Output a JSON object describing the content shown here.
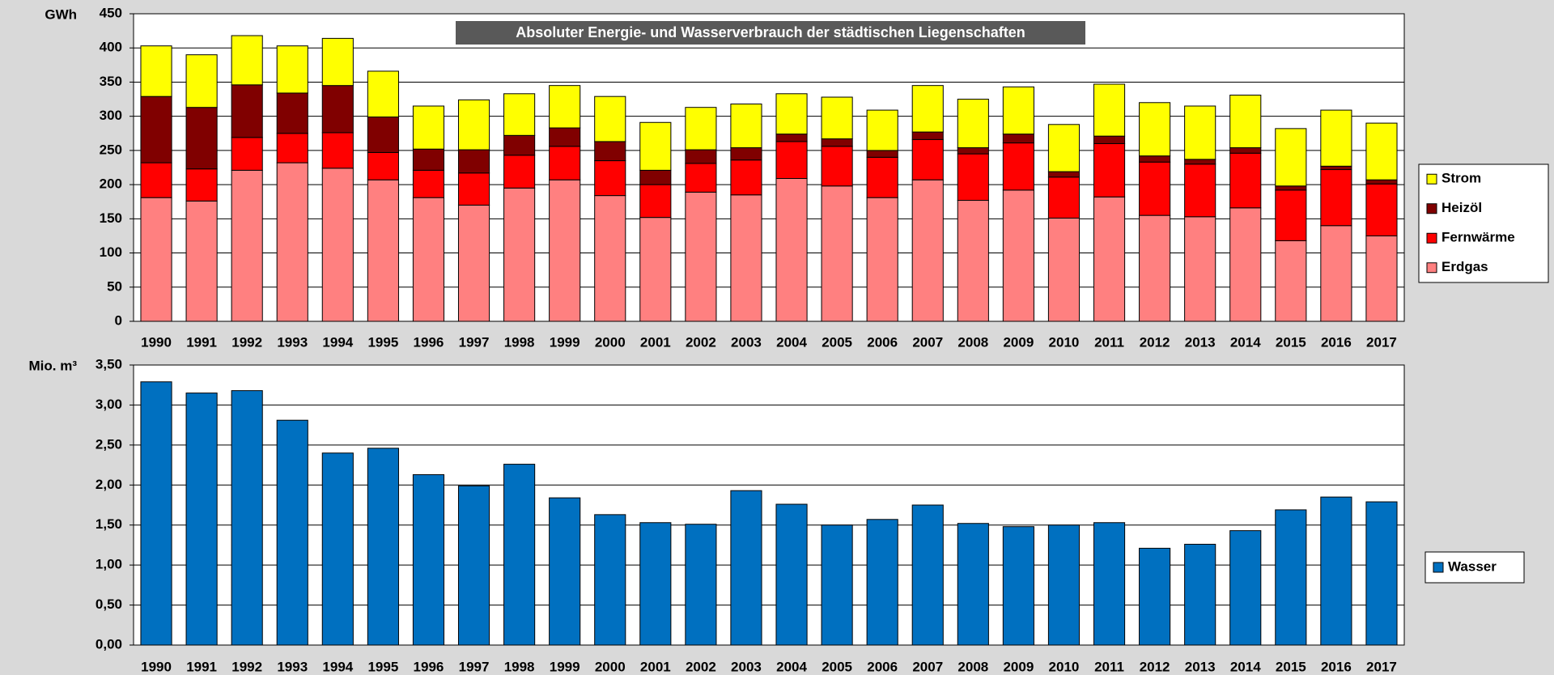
{
  "chart_data": [
    {
      "type": "bar",
      "stacked": true,
      "title": "Absoluter Energie- und Wasserverbrauch der städtischen Liegenschaften",
      "y_label": "GWh",
      "categories": [
        "1990",
        "1991",
        "1992",
        "1993",
        "1994",
        "1995",
        "1996",
        "1997",
        "1998",
        "1999",
        "2000",
        "2001",
        "2002",
        "2003",
        "2004",
        "2005",
        "2006",
        "2007",
        "2008",
        "2009",
        "2010",
        "2011",
        "2012",
        "2013",
        "2014",
        "2015",
        "2016",
        "2017"
      ],
      "series": [
        {
          "name": "Erdgas",
          "color": "#ff8080",
          "values": [
            181,
            176,
            221,
            232,
            224,
            207,
            181,
            170,
            195,
            207,
            184,
            152,
            189,
            185,
            209,
            198,
            181,
            207,
            177,
            192,
            151,
            182,
            155,
            153,
            166,
            118,
            140,
            125
          ]
        },
        {
          "name": "Fernwärme",
          "color": "#ff0000",
          "values": [
            51,
            47,
            48,
            43,
            52,
            40,
            40,
            47,
            48,
            49,
            51,
            48,
            42,
            51,
            54,
            58,
            59,
            59,
            68,
            69,
            60,
            78,
            78,
            77,
            80,
            74,
            82,
            76
          ]
        },
        {
          "name": "Heizöl",
          "color": "#800000",
          "values": [
            97,
            90,
            77,
            59,
            69,
            52,
            31,
            34,
            29,
            27,
            28,
            21,
            20,
            18,
            11,
            11,
            10,
            11,
            9,
            13,
            8,
            11,
            9,
            7,
            8,
            6,
            5,
            6
          ]
        },
        {
          "name": "Strom",
          "color": "#ffff00",
          "values": [
            74,
            77,
            72,
            69,
            69,
            67,
            63,
            73,
            61,
            62,
            66,
            70,
            62,
            64,
            59,
            61,
            59,
            68,
            71,
            69,
            69,
            76,
            78,
            78,
            77,
            84,
            82,
            83
          ]
        }
      ],
      "ylim": [
        0,
        450
      ],
      "yticks": [
        0,
        50,
        100,
        150,
        200,
        250,
        300,
        350,
        400,
        450
      ],
      "grid": true,
      "legend": "right"
    },
    {
      "type": "bar",
      "y_label": "Mio. m³",
      "categories": [
        "1990",
        "1991",
        "1992",
        "1993",
        "1994",
        "1995",
        "1996",
        "1997",
        "1998",
        "1999",
        "2000",
        "2001",
        "2002",
        "2003",
        "2004",
        "2005",
        "2006",
        "2007",
        "2008",
        "2009",
        "2010",
        "2011",
        "2012",
        "2013",
        "2014",
        "2015",
        "2016",
        "2017"
      ],
      "series": [
        {
          "name": "Wasser",
          "color": "#0070c0",
          "values": [
            3.29,
            3.15,
            3.18,
            2.81,
            2.4,
            2.46,
            2.13,
            1.99,
            2.26,
            1.84,
            1.63,
            1.53,
            1.51,
            1.93,
            1.76,
            1.5,
            1.57,
            1.75,
            1.52,
            1.48,
            1.5,
            1.53,
            1.21,
            1.26,
            1.43,
            1.69,
            1.85,
            1.79
          ]
        }
      ],
      "ylim": [
        0,
        3.5
      ],
      "yticks": [
        {
          "value": 0,
          "label": "0,00"
        },
        {
          "value": 0.5,
          "label": "0,50"
        },
        {
          "value": 1,
          "label": "1,00"
        },
        {
          "value": 1.5,
          "label": "1,50"
        },
        {
          "value": 2,
          "label": "2,00"
        },
        {
          "value": 2.5,
          "label": "2,50"
        },
        {
          "value": 3,
          "label": "3,00"
        },
        {
          "value": 3.5,
          "label": "3,50"
        }
      ],
      "grid": true,
      "legend": "right"
    }
  ]
}
